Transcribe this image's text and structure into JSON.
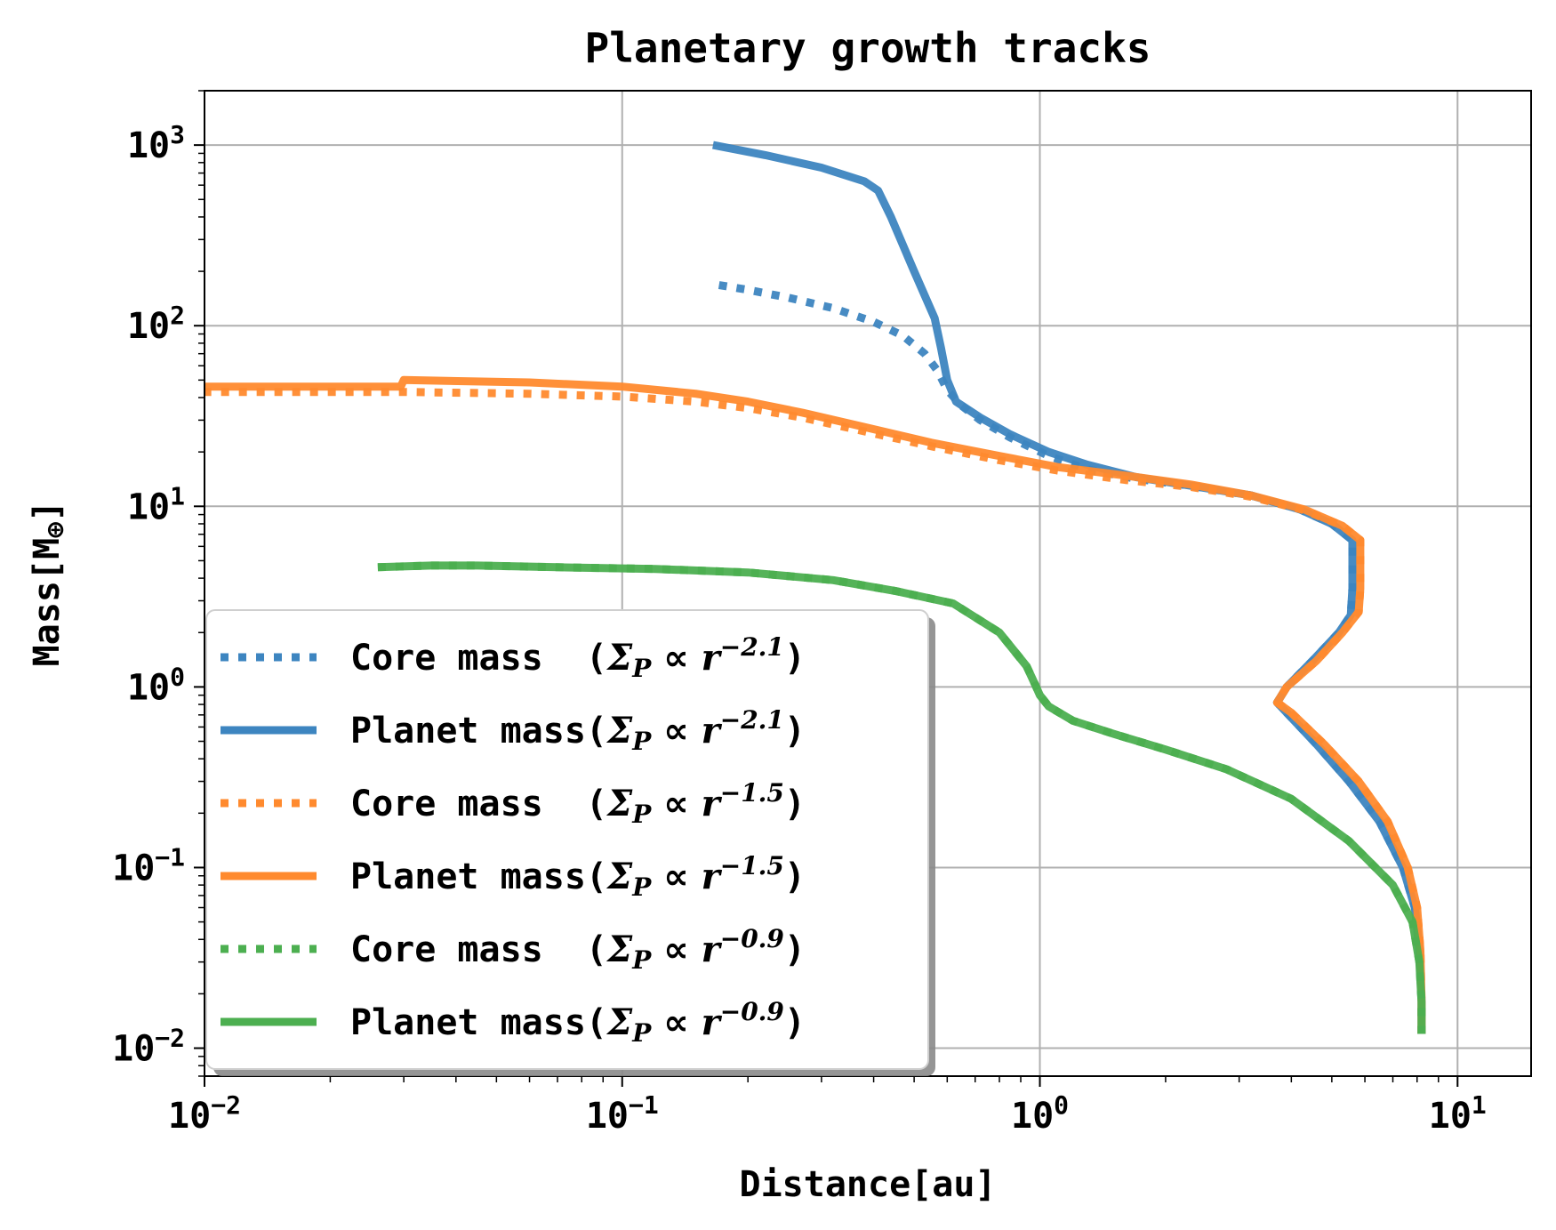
{
  "chart_data": {
    "type": "line",
    "title": "Planetary growth tracks",
    "xlabel": "Distance[au]",
    "ylabel_prefix": "Mass[M",
    "ylabel_sub": "⊕",
    "ylabel_suffix": "]",
    "xscale": "log",
    "yscale": "log",
    "xlim": [
      0.01,
      15
    ],
    "ylim": [
      0.007,
      2000
    ],
    "grid": true,
    "legend_loc": "lower-left",
    "x_ticks": [
      {
        "value": 0.01,
        "base": "10",
        "exp": "−2"
      },
      {
        "value": 0.1,
        "base": "10",
        "exp": "−1"
      },
      {
        "value": 1,
        "base": "10",
        "exp": "0"
      },
      {
        "value": 10,
        "base": "10",
        "exp": "1"
      }
    ],
    "y_ticks": [
      {
        "value": 0.01,
        "base": "10",
        "exp": "−2"
      },
      {
        "value": 0.1,
        "base": "10",
        "exp": "−1"
      },
      {
        "value": 1,
        "base": "10",
        "exp": "0"
      },
      {
        "value": 10,
        "base": "10",
        "exp": "1"
      },
      {
        "value": 100,
        "base": "10",
        "exp": "2"
      },
      {
        "value": 1000,
        "base": "10",
        "exp": "3"
      }
    ],
    "series": [
      {
        "name": "Core mass (Σ_P ∝ r^-2.1)",
        "label_main": "Core mass  (",
        "label_sigma": "Σ",
        "label_sub": "P",
        "label_prop": " ∝ ",
        "label_r": "r",
        "label_exp": "−2.1",
        "label_close": ")",
        "color": "#3d85c0",
        "style": "dotted",
        "points": [
          [
            8.2,
            0.012
          ],
          [
            8.2,
            0.018
          ],
          [
            8.1,
            0.035
          ],
          [
            7.9,
            0.06
          ],
          [
            7.4,
            0.1
          ],
          [
            6.5,
            0.18
          ],
          [
            5.5,
            0.3
          ],
          [
            4.6,
            0.48
          ],
          [
            3.9,
            0.72
          ],
          [
            3.7,
            0.82
          ],
          [
            3.9,
            1.0
          ],
          [
            4.5,
            1.4
          ],
          [
            5.2,
            2.0
          ],
          [
            5.55,
            2.5
          ],
          [
            5.6,
            3.5
          ],
          [
            5.6,
            6.5
          ],
          [
            5.0,
            8.0
          ],
          [
            4.2,
            9.6
          ],
          [
            3.2,
            11.5
          ],
          [
            2.3,
            13.0
          ],
          [
            1.7,
            14.2
          ],
          [
            1.3,
            16.0
          ],
          [
            1.05,
            19.0
          ],
          [
            0.85,
            24.0
          ],
          [
            0.72,
            30.0
          ],
          [
            0.65,
            36.0
          ],
          [
            0.6,
            44.0
          ],
          [
            0.57,
            56.0
          ],
          [
            0.53,
            70.0
          ],
          [
            0.47,
            88.0
          ],
          [
            0.4,
            105.0
          ],
          [
            0.32,
            125.0
          ],
          [
            0.25,
            143.0
          ],
          [
            0.2,
            158.0
          ],
          [
            0.165,
            170.0
          ]
        ]
      },
      {
        "name": "Planet mass (Σ_P ∝ r^-2.1)",
        "label_main": "Planet mass(",
        "label_sigma": "Σ",
        "label_sub": "P",
        "label_prop": " ∝ ",
        "label_r": "r",
        "label_exp": "−2.1",
        "label_close": ")",
        "color": "#3d85c0",
        "style": "solid",
        "points": [
          [
            8.2,
            0.012
          ],
          [
            8.2,
            0.018
          ],
          [
            8.1,
            0.035
          ],
          [
            7.9,
            0.06
          ],
          [
            7.4,
            0.1
          ],
          [
            6.5,
            0.18
          ],
          [
            5.5,
            0.3
          ],
          [
            4.6,
            0.48
          ],
          [
            3.9,
            0.72
          ],
          [
            3.7,
            0.82
          ],
          [
            3.9,
            1.0
          ],
          [
            4.5,
            1.4
          ],
          [
            5.2,
            2.0
          ],
          [
            5.55,
            2.5
          ],
          [
            5.6,
            3.5
          ],
          [
            5.6,
            6.5
          ],
          [
            5.0,
            8.0
          ],
          [
            4.2,
            9.6
          ],
          [
            3.2,
            11.5
          ],
          [
            2.3,
            13.0
          ],
          [
            1.7,
            14.5
          ],
          [
            1.3,
            17.0
          ],
          [
            1.05,
            20.0
          ],
          [
            0.85,
            25.0
          ],
          [
            0.72,
            31.0
          ],
          [
            0.63,
            38.0
          ],
          [
            0.6,
            50.0
          ],
          [
            0.58,
            75.0
          ],
          [
            0.56,
            110.0
          ],
          [
            0.5,
            200.0
          ],
          [
            0.44,
            400.0
          ],
          [
            0.41,
            560.0
          ],
          [
            0.38,
            630.0
          ],
          [
            0.3,
            750.0
          ],
          [
            0.22,
            880.0
          ],
          [
            0.165,
            1000.0
          ]
        ]
      },
      {
        "name": "Core mass (Σ_P ∝ r^-1.5)",
        "label_main": "Core mass  (",
        "label_sigma": "Σ",
        "label_sub": "P",
        "label_prop": " ∝ ",
        "label_r": "r",
        "label_exp": "−1.5",
        "label_close": ")",
        "color": "#ff8a2e",
        "style": "dotted",
        "points": [
          [
            8.2,
            0.012
          ],
          [
            8.2,
            0.018
          ],
          [
            8.15,
            0.035
          ],
          [
            8.0,
            0.06
          ],
          [
            7.6,
            0.1
          ],
          [
            6.8,
            0.18
          ],
          [
            5.8,
            0.3
          ],
          [
            4.8,
            0.48
          ],
          [
            4.0,
            0.72
          ],
          [
            3.7,
            0.82
          ],
          [
            3.9,
            1.0
          ],
          [
            4.6,
            1.4
          ],
          [
            5.3,
            2.0
          ],
          [
            5.8,
            2.6
          ],
          [
            5.85,
            3.5
          ],
          [
            5.85,
            6.5
          ],
          [
            5.3,
            7.8
          ],
          [
            4.3,
            9.5
          ],
          [
            3.2,
            11.3
          ],
          [
            2.3,
            12.8
          ],
          [
            1.6,
            14.0
          ],
          [
            1.1,
            15.8
          ],
          [
            0.8,
            18.0
          ],
          [
            0.55,
            21.5
          ],
          [
            0.38,
            26.0
          ],
          [
            0.27,
            31.0
          ],
          [
            0.2,
            35.0
          ],
          [
            0.15,
            38.0
          ],
          [
            0.1,
            40.5
          ],
          [
            0.06,
            42.0
          ],
          [
            0.03,
            43.0
          ],
          [
            0.02,
            43.0
          ],
          [
            0.01,
            43.0
          ]
        ]
      },
      {
        "name": "Planet mass (Σ_P ∝ r^-1.5)",
        "label_main": "Planet mass(",
        "label_sigma": "Σ",
        "label_sub": "P",
        "label_prop": " ∝ ",
        "label_r": "r",
        "label_exp": "−1.5",
        "label_close": ")",
        "color": "#ff8a2e",
        "style": "solid",
        "points": [
          [
            8.2,
            0.012
          ],
          [
            8.2,
            0.018
          ],
          [
            8.15,
            0.035
          ],
          [
            8.0,
            0.06
          ],
          [
            7.6,
            0.1
          ],
          [
            6.8,
            0.18
          ],
          [
            5.8,
            0.3
          ],
          [
            4.8,
            0.48
          ],
          [
            4.0,
            0.72
          ],
          [
            3.7,
            0.82
          ],
          [
            3.9,
            1.0
          ],
          [
            4.6,
            1.4
          ],
          [
            5.3,
            2.0
          ],
          [
            5.8,
            2.6
          ],
          [
            5.85,
            3.5
          ],
          [
            5.85,
            6.5
          ],
          [
            5.3,
            7.8
          ],
          [
            4.3,
            9.6
          ],
          [
            3.2,
            11.5
          ],
          [
            2.3,
            13.2
          ],
          [
            1.6,
            14.8
          ],
          [
            1.1,
            16.5
          ],
          [
            0.8,
            19.0
          ],
          [
            0.55,
            22.5
          ],
          [
            0.38,
            27.5
          ],
          [
            0.27,
            33.0
          ],
          [
            0.2,
            38.0
          ],
          [
            0.15,
            42.0
          ],
          [
            0.1,
            46.0
          ],
          [
            0.06,
            48.5
          ],
          [
            0.03,
            50.0
          ],
          [
            0.0295,
            46.0
          ],
          [
            0.02,
            46.0
          ],
          [
            0.01,
            46.0
          ]
        ]
      },
      {
        "name": "Core mass (Σ_P ∝ r^-0.9)",
        "label_main": "Core mass  (",
        "label_sigma": "Σ",
        "label_sub": "P",
        "label_prop": " ∝ ",
        "label_r": "r",
        "label_exp": "−0.9",
        "label_close": ")",
        "color": "#4caf50",
        "style": "dotted",
        "points": [
          [
            8.2,
            0.012
          ],
          [
            8.2,
            0.018
          ],
          [
            8.1,
            0.03
          ],
          [
            7.8,
            0.05
          ],
          [
            7.0,
            0.08
          ],
          [
            5.5,
            0.14
          ],
          [
            4.0,
            0.24
          ],
          [
            2.8,
            0.35
          ],
          [
            2.0,
            0.45
          ],
          [
            1.5,
            0.55
          ],
          [
            1.2,
            0.65
          ],
          [
            1.05,
            0.78
          ],
          [
            1.0,
            0.9
          ],
          [
            0.98,
            1.0
          ],
          [
            0.93,
            1.3
          ],
          [
            0.8,
            2.0
          ],
          [
            0.62,
            2.9
          ],
          [
            0.45,
            3.4
          ],
          [
            0.32,
            3.9
          ],
          [
            0.2,
            4.3
          ],
          [
            0.12,
            4.5
          ],
          [
            0.07,
            4.6
          ],
          [
            0.045,
            4.7
          ],
          [
            0.035,
            4.7
          ],
          [
            0.026,
            4.6
          ]
        ]
      },
      {
        "name": "Planet mass (Σ_P ∝ r^-0.9)",
        "label_main": "Planet mass(",
        "label_sigma": "Σ",
        "label_sub": "P",
        "label_prop": " ∝ ",
        "label_r": "r",
        "label_exp": "−0.9",
        "label_close": ")",
        "color": "#4caf50",
        "style": "solid",
        "points": [
          [
            8.2,
            0.012
          ],
          [
            8.2,
            0.018
          ],
          [
            8.1,
            0.03
          ],
          [
            7.8,
            0.05
          ],
          [
            7.0,
            0.08
          ],
          [
            5.5,
            0.14
          ],
          [
            4.0,
            0.24
          ],
          [
            2.8,
            0.35
          ],
          [
            2.0,
            0.45
          ],
          [
            1.5,
            0.55
          ],
          [
            1.2,
            0.65
          ],
          [
            1.05,
            0.78
          ],
          [
            1.0,
            0.9
          ],
          [
            0.98,
            1.0
          ],
          [
            0.93,
            1.3
          ],
          [
            0.8,
            2.0
          ],
          [
            0.62,
            2.9
          ],
          [
            0.45,
            3.4
          ],
          [
            0.32,
            3.9
          ],
          [
            0.2,
            4.3
          ],
          [
            0.12,
            4.5
          ],
          [
            0.07,
            4.6
          ],
          [
            0.045,
            4.7
          ],
          [
            0.035,
            4.7
          ],
          [
            0.026,
            4.6
          ]
        ]
      }
    ]
  }
}
